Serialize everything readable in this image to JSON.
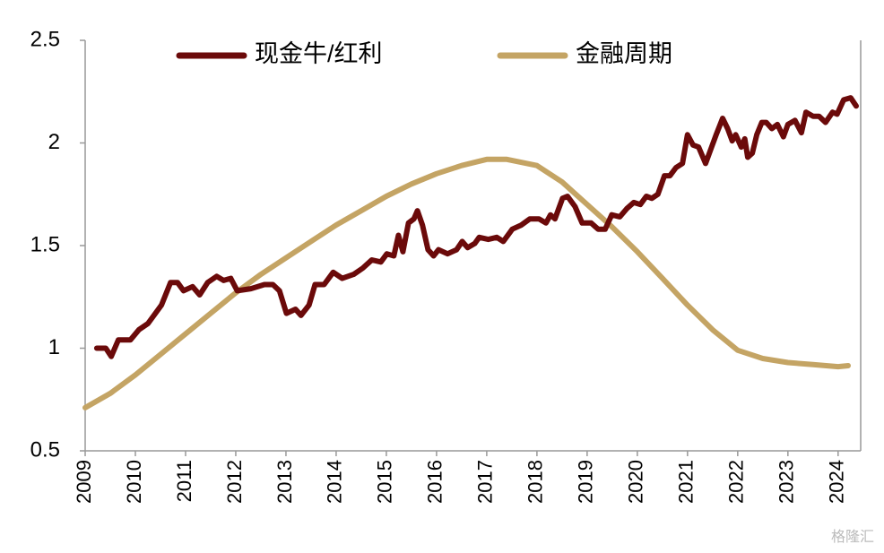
{
  "chart_data": {
    "type": "line",
    "series": [
      {
        "name": "现金牛/红利",
        "color": "#6b0a0a",
        "x": [
          2009.23,
          2009.41,
          2009.52,
          2009.66,
          2009.9,
          2010.07,
          2010.25,
          2010.37,
          2010.52,
          2010.7,
          2010.84,
          2010.96,
          2011.14,
          2011.28,
          2011.44,
          2011.62,
          2011.76,
          2011.9,
          2012.03,
          2012.3,
          2012.57,
          2012.74,
          2012.87,
          2013.01,
          2013.19,
          2013.3,
          2013.46,
          2013.58,
          2013.76,
          2013.94,
          2014.12,
          2014.35,
          2014.53,
          2014.71,
          2014.89,
          2015.01,
          2015.15,
          2015.24,
          2015.33,
          2015.44,
          2015.55,
          2015.62,
          2015.72,
          2015.83,
          2015.94,
          2016.04,
          2016.22,
          2016.4,
          2016.51,
          2016.62,
          2016.76,
          2016.85,
          2017.03,
          2017.2,
          2017.33,
          2017.51,
          2017.69,
          2017.86,
          2018.04,
          2018.18,
          2018.27,
          2018.36,
          2018.51,
          2018.61,
          2018.76,
          2018.9,
          2019.08,
          2019.22,
          2019.36,
          2019.49,
          2019.65,
          2019.79,
          2019.93,
          2020.06,
          2020.18,
          2020.29,
          2020.41,
          2020.54,
          2020.65,
          2020.77,
          2020.9,
          2021.0,
          2021.11,
          2021.22,
          2021.36,
          2021.48,
          2021.57,
          2021.7,
          2021.8,
          2021.89,
          2021.96,
          2022.07,
          2022.14,
          2022.2,
          2022.29,
          2022.38,
          2022.48,
          2022.57,
          2022.68,
          2022.79,
          2022.91,
          2023.0,
          2023.14,
          2023.27,
          2023.36,
          2023.5,
          2023.62,
          2023.75,
          2023.89,
          2023.98,
          2024.11,
          2024.25,
          2024.36
        ],
        "values": [
          1.0,
          1.0,
          0.96,
          1.04,
          1.04,
          1.09,
          1.12,
          1.16,
          1.21,
          1.32,
          1.32,
          1.28,
          1.3,
          1.26,
          1.32,
          1.35,
          1.33,
          1.34,
          1.28,
          1.29,
          1.31,
          1.31,
          1.28,
          1.17,
          1.19,
          1.16,
          1.21,
          1.31,
          1.31,
          1.37,
          1.34,
          1.36,
          1.39,
          1.43,
          1.42,
          1.46,
          1.45,
          1.55,
          1.47,
          1.61,
          1.63,
          1.67,
          1.6,
          1.48,
          1.45,
          1.48,
          1.46,
          1.48,
          1.52,
          1.49,
          1.51,
          1.54,
          1.53,
          1.54,
          1.52,
          1.58,
          1.6,
          1.63,
          1.63,
          1.61,
          1.65,
          1.63,
          1.73,
          1.74,
          1.69,
          1.61,
          1.61,
          1.58,
          1.58,
          1.65,
          1.64,
          1.68,
          1.71,
          1.7,
          1.74,
          1.73,
          1.75,
          1.84,
          1.84,
          1.88,
          1.9,
          2.04,
          1.99,
          1.98,
          1.9,
          1.98,
          2.04,
          2.12,
          2.07,
          2.01,
          2.04,
          1.98,
          2.02,
          1.93,
          1.95,
          2.04,
          2.1,
          2.1,
          2.07,
          2.09,
          2.03,
          2.09,
          2.11,
          2.05,
          2.15,
          2.13,
          2.13,
          2.1,
          2.15,
          2.14,
          2.21,
          2.22,
          2.18
        ]
      },
      {
        "name": "金融周期",
        "color": "#c4a464",
        "x": [
          2009,
          2009.5,
          2010,
          2010.5,
          2011,
          2011.5,
          2012,
          2012.5,
          2013,
          2013.5,
          2014,
          2014.5,
          2015,
          2015.5,
          2016,
          2016.5,
          2017,
          2017.4,
          2018,
          2018.5,
          2019,
          2019.5,
          2020,
          2020.5,
          2021,
          2021.5,
          2022,
          2022.5,
          2023,
          2023.5,
          2024,
          2024.2
        ],
        "values": [
          0.71,
          0.78,
          0.87,
          0.97,
          1.07,
          1.17,
          1.27,
          1.36,
          1.44,
          1.52,
          1.6,
          1.67,
          1.74,
          1.8,
          1.85,
          1.89,
          1.92,
          1.92,
          1.89,
          1.81,
          1.7,
          1.59,
          1.47,
          1.34,
          1.21,
          1.09,
          0.99,
          0.95,
          0.93,
          0.92,
          0.91,
          0.915
        ]
      }
    ],
    "xlim": [
      2009,
      2024.45
    ],
    "xticks": [
      2009,
      2010,
      2011,
      2012,
      2013,
      2014,
      2015,
      2016,
      2017,
      2018,
      2019,
      2020,
      2021,
      2022,
      2023,
      2024
    ],
    "ylim": [
      0.5,
      2.5
    ],
    "yticks": [
      0.5,
      1,
      1.5,
      2,
      2.5
    ],
    "legend": "top",
    "watermark": "格隆汇"
  }
}
